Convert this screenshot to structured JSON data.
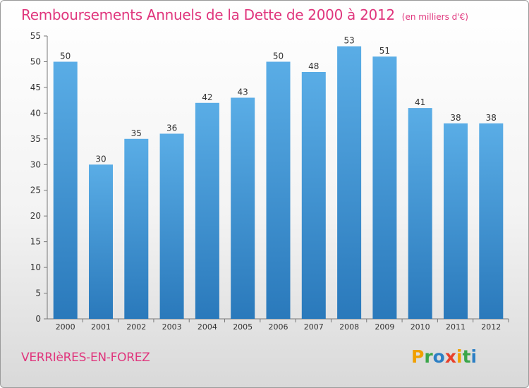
{
  "header": {
    "title": "Remboursements Annuels de la Dette de 2000 à 2012",
    "unit": "(en milliers d'€)"
  },
  "footer": {
    "place": "VERRIèRES-EN-FOREZ",
    "logo_text": "Proxiti"
  },
  "colors": {
    "title": "#e0367d",
    "bar_top": "#5aade6",
    "bar_bottom": "#2a79bb"
  },
  "chart_data": {
    "type": "bar",
    "title": "Remboursements Annuels de la Dette de 2000 à 2012",
    "subtitle": "(en milliers d'€)",
    "xlabel": "",
    "ylabel": "",
    "categories": [
      "2000",
      "2001",
      "2002",
      "2003",
      "2004",
      "2005",
      "2006",
      "2007",
      "2008",
      "2009",
      "2010",
      "2011",
      "2012"
    ],
    "values": [
      50,
      30,
      35,
      36,
      42,
      43,
      50,
      48,
      53,
      51,
      41,
      38,
      38
    ],
    "ylim": [
      0,
      55
    ],
    "yticks": [
      0,
      5,
      10,
      15,
      20,
      25,
      30,
      35,
      40,
      45,
      50,
      55
    ],
    "grid": false,
    "legend": "none",
    "data_labels": true
  }
}
